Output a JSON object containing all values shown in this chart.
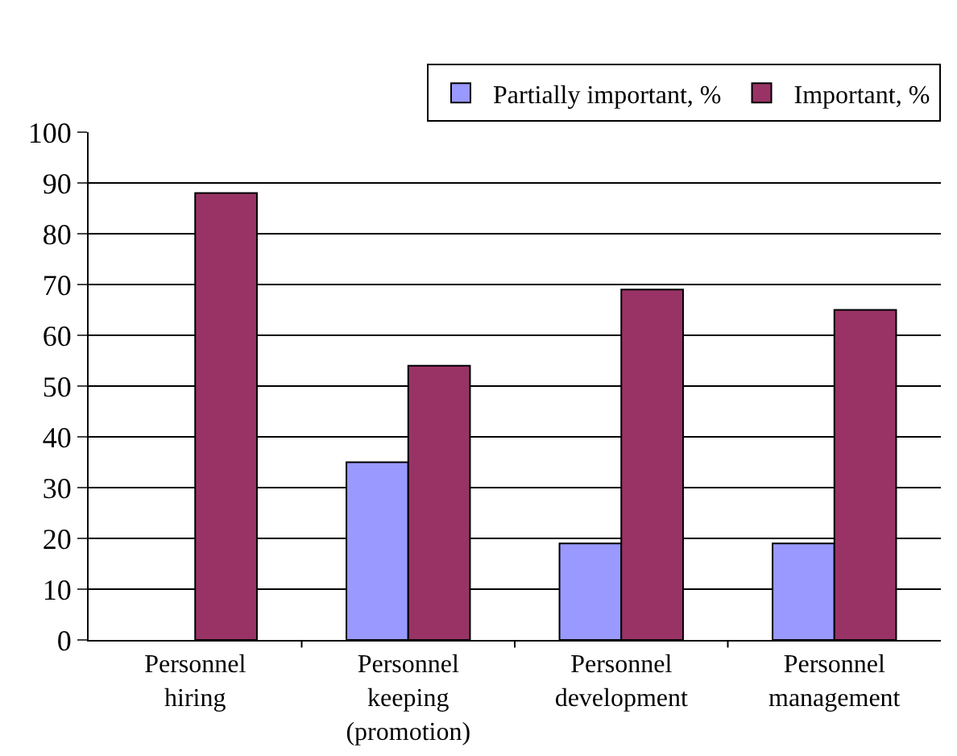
{
  "chart_data": {
    "type": "bar",
    "categories": [
      "Personnel\nhiring",
      "Personnel\nkeeping\n(promotion)",
      "Personnel\ndevelopment",
      "Personnel\nmanagement"
    ],
    "series": [
      {
        "name": "Partially important, %",
        "color": "#9999ff",
        "values": [
          null,
          35,
          19,
          19
        ]
      },
      {
        "name": "Important, %",
        "color": "#993366",
        "values": [
          88,
          54,
          69,
          65
        ]
      }
    ],
    "ylim": [
      0,
      100
    ],
    "yticks": [
      0,
      10,
      20,
      30,
      40,
      50,
      60,
      70,
      80,
      90,
      100
    ],
    "grid": "y",
    "legend": "top right"
  }
}
